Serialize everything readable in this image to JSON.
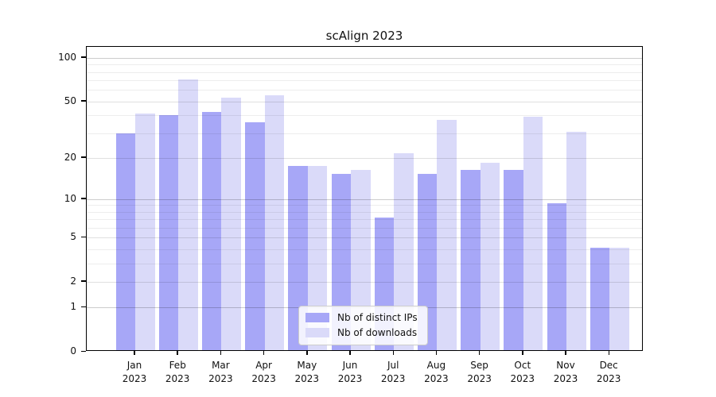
{
  "title": "scAlign 2023",
  "chart_data": {
    "type": "bar",
    "title": "scAlign 2023",
    "categories": [
      "Jan",
      "Feb",
      "Mar",
      "Apr",
      "May",
      "Jun",
      "Jul",
      "Aug",
      "Sep",
      "Oct",
      "Nov",
      "Dec"
    ],
    "year": "2023",
    "series": [
      {
        "name": "Nb of distinct IPs",
        "color": "#a7a7f7",
        "values": [
          29,
          39,
          41,
          35,
          17,
          15,
          7,
          15,
          16,
          16,
          9,
          4
        ]
      },
      {
        "name": "Nb of downloads",
        "color": "#dadaf9",
        "values": [
          40,
          69,
          52,
          54,
          17,
          16,
          21,
          36,
          18,
          38,
          30,
          4
        ]
      }
    ],
    "xlabel": "",
    "ylabel": "",
    "yscale": "log1p",
    "yticks": [
      0,
      1,
      2,
      5,
      10,
      20,
      50,
      100
    ],
    "minor_gridlines": [
      3,
      4,
      6,
      7,
      8,
      9,
      30,
      40,
      60,
      70,
      80,
      90
    ],
    "ylim": [
      0,
      119
    ],
    "grid": "horizontal",
    "legend_position": "lower center",
    "colors": {
      "axis": "#000000",
      "grid_major": "#c8c8c8",
      "grid_minor": "#ececec",
      "background": "#ffffff"
    }
  }
}
